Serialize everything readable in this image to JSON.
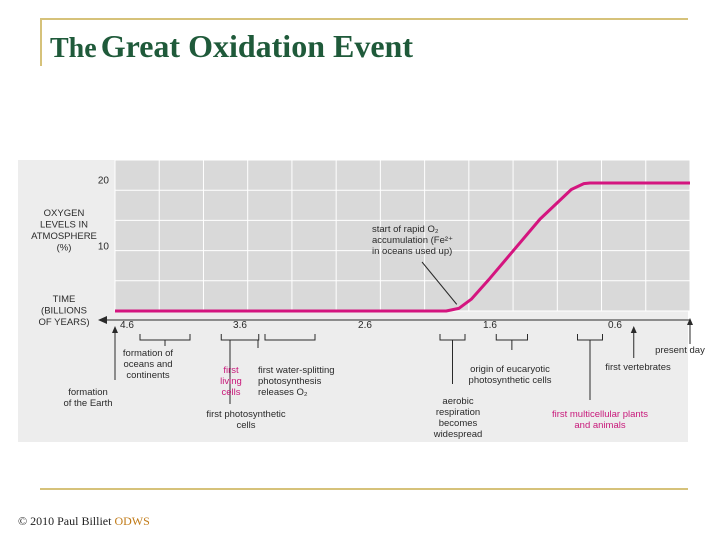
{
  "slide": {
    "title_prefix": "The",
    "title_main": "Great Oxidation Event",
    "footer_author": "© 2010 Paul Billiet",
    "footer_org": "ODWS"
  },
  "chart_data": {
    "type": "line",
    "ylabel": [
      "OXYGEN",
      "LEVELS IN",
      "ATMOSPHERE",
      "(%)"
    ],
    "xlabel": [
      "TIME",
      "(BILLIONS",
      "OF YEARS)"
    ],
    "y_ticks": [
      "20",
      "10"
    ],
    "y_tick_values": [
      20,
      10
    ],
    "ylim": [
      0,
      23
    ],
    "x_ticks": [
      "4.6",
      "3.6",
      "2.6",
      "1.6",
      "0.6"
    ],
    "x_tick_values": [
      4.6,
      3.6,
      2.6,
      1.6,
      0.6
    ],
    "xlim": [
      4.6,
      0
    ],
    "grid": true,
    "series": [
      {
        "color": "#d4157f",
        "x": [
          4.6,
          2.2,
          1.95,
          1.85,
          1.75,
          1.6,
          1.2,
          0.95,
          0.85,
          0.8,
          0
        ],
        "y": [
          0,
          0,
          0,
          0.4,
          1.8,
          5,
          14,
          18.5,
          19.4,
          19.5,
          19.5
        ]
      }
    ],
    "annotation": {
      "lines": [
        "start of rapid O₂",
        "accumulation (Fe²⁺",
        "in oceans used up)"
      ],
      "x": 1.85,
      "y": 0.4
    },
    "events": [
      {
        "lines": [
          "formation",
          "of the Earth"
        ],
        "x": 4.6,
        "color": "#2a2a2a"
      },
      {
        "lines": [
          "formation of",
          "oceans and",
          "continents"
        ],
        "x_range": [
          4.4,
          4.0
        ],
        "color": "#2a2a2a"
      },
      {
        "lines": [
          "first",
          "living",
          "cells"
        ],
        "x": 3.55,
        "color": "#c8187a"
      },
      {
        "lines": [
          "first photosynthetic",
          "cells"
        ],
        "x_range": [
          3.75,
          3.45
        ],
        "color": "#2a2a2a"
      },
      {
        "lines": [
          "first water-splitting",
          "photosynthesis",
          "releases O₂"
        ],
        "x_range": [
          3.4,
          3.0
        ],
        "color": "#2a2a2a"
      },
      {
        "lines": [
          "aerobic",
          "respiration",
          "becomes",
          "widespread"
        ],
        "x_range": [
          2.0,
          1.8
        ],
        "color": "#2a2a2a"
      },
      {
        "lines": [
          "origin of eucaryotic",
          "photosynthetic cells"
        ],
        "x_range": [
          1.55,
          1.3
        ],
        "color": "#2a2a2a"
      },
      {
        "lines": [
          "first multicellular plants",
          "and animals"
        ],
        "x_range": [
          0.9,
          0.7
        ],
        "color": "#c8187a"
      },
      {
        "lines": [
          "first vertebrates"
        ],
        "x": 0.45,
        "color": "#2a2a2a"
      },
      {
        "lines": [
          "present day"
        ],
        "x": 0,
        "color": "#2a2a2a"
      }
    ]
  }
}
